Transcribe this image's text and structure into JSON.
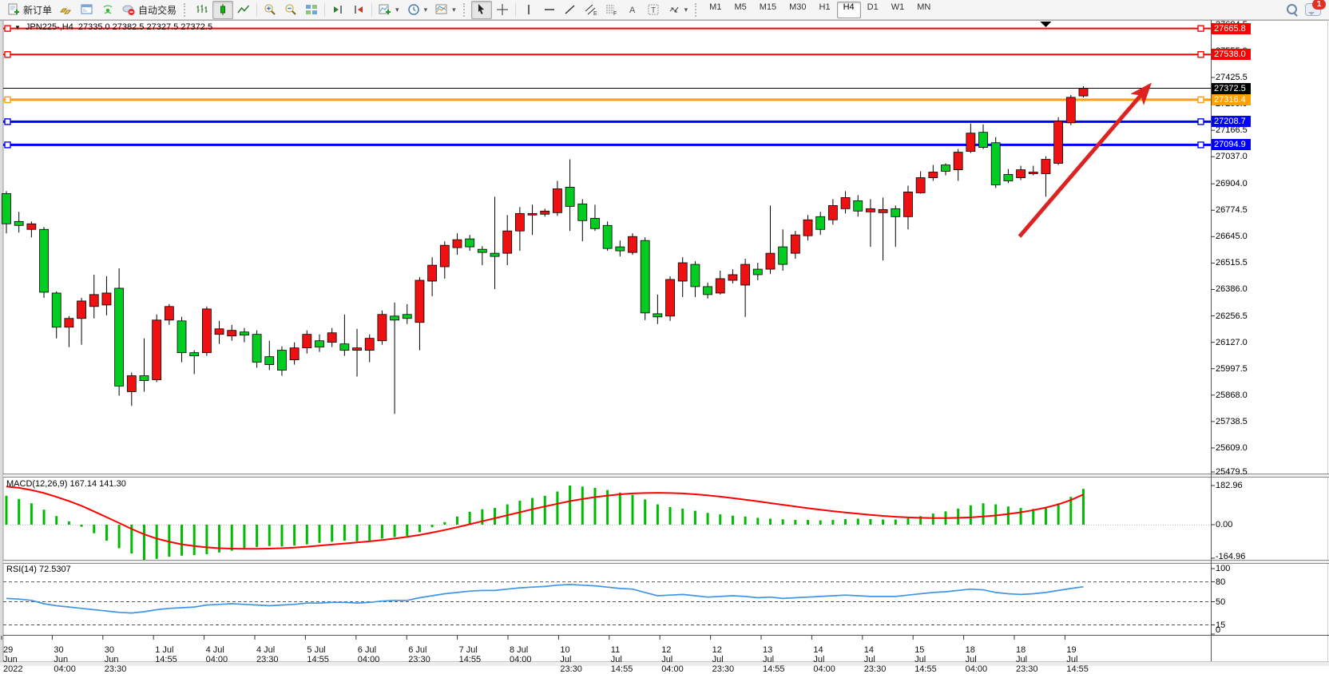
{
  "toolbar": {
    "new_order_label": "新订单",
    "autotrading_label": "自动交易",
    "timeframes": [
      "M1",
      "M5",
      "M15",
      "M30",
      "H1",
      "H4",
      "D1",
      "W1",
      "MN"
    ],
    "active_timeframe": "H4",
    "notification_count": "1",
    "icon_names": [
      "new-order",
      "gold-bars",
      "market-watch",
      "signals",
      "autotrading",
      "bar-chart",
      "candlestick-chart",
      "line-chart",
      "zoom-in",
      "zoom-out",
      "tile-windows",
      "shift-chart-end",
      "chart-shift",
      "new-chart",
      "periods-clock",
      "templates",
      "cursor",
      "crosshair",
      "vertical-line",
      "horizontal-line",
      "trendline",
      "equidistant-channel",
      "fibonacci",
      "text",
      "text-label",
      "arrow-objects",
      "search",
      "notifications"
    ]
  },
  "glyphs": {
    "title_marker": "▼",
    "dropdown": "▾",
    "channel_letter": "E",
    "fibo_letter": "F",
    "text_a": "A",
    "text_label_t": "T"
  },
  "chart": {
    "symbol_period": "JPN225-,H4",
    "ohlc_string": "27335.0 27382.5 27327.5 27372.5"
  },
  "macd_panel": {
    "label": "MACD(12,26,9) 167.14 141.30"
  },
  "rsi_panel": {
    "label": "RSI(14) 72.5307"
  },
  "price_axis_ticks": [
    27684.5,
    27555.0,
    27425.5,
    27296.0,
    27166.5,
    27037.0,
    26904.0,
    26774.5,
    26645.0,
    26515.5,
    26386.0,
    26256.5,
    26127.0,
    25997.5,
    25868.0,
    25738.5,
    25609.0,
    25479.5
  ],
  "macd_ticks": [
    182.96,
    0.0,
    -164.96
  ],
  "rsi_ticks": [
    100,
    80,
    50,
    15,
    0
  ],
  "rsi_levels": [
    80,
    50,
    15
  ],
  "hlines": [
    {
      "price": 27665.8,
      "label": "27665.8",
      "color": "#ff0000",
      "width": 2,
      "handles": true
    },
    {
      "price": 27538.0,
      "label": "27538.0",
      "color": "#ff0000",
      "width": 2,
      "handles": true
    },
    {
      "price": 27372.5,
      "label": "27372.5",
      "color": "#000000",
      "width": 1,
      "handles": false
    },
    {
      "price": 27316.4,
      "label": "27316.4",
      "color": "#ffa000",
      "width": 3,
      "handles": true
    },
    {
      "price": 27208.7,
      "label": "27208.7",
      "color": "#0000ff",
      "width": 3,
      "handles": true
    },
    {
      "price": 27094.9,
      "label": "27094.9",
      "color": "#0000ff",
      "width": 3,
      "handles": true
    }
  ],
  "colors": {
    "bull": "#ee1111",
    "bear": "#00cc22",
    "wick": "#000000",
    "macd_hist": "#00bb00",
    "macd_signal": "#ff0000",
    "rsi_line": "#3f95e8",
    "arrow": "#dd2222"
  },
  "time_axis": [
    "29 Jun 2022",
    "30 Jun 04:00",
    "30 Jun 23:30",
    "1 Jul 14:55",
    "4 Jul 04:00",
    "4 Jul 23:30",
    "5 Jul 14:55",
    "6 Jul 04:00",
    "6 Jul 23:30",
    "7 Jul 14:55",
    "8 Jul 04:00",
    "10 Jul 23:30",
    "11 Jul 14:55",
    "12 Jul 04:00",
    "12 Jul 23:30",
    "13 Jul 14:55",
    "14 Jul 04:00",
    "14 Jul 23:30",
    "15 Jul 14:55",
    "18 Jul 04:00",
    "18 Jul 23:30",
    "19 Jul 14:55"
  ],
  "chart_data": {
    "type": "candlestick",
    "title": "JPN225-,H4",
    "current_bar": {
      "open": 27335.0,
      "high": 27382.5,
      "low": 27327.5,
      "close": 27372.5
    },
    "ylim": [
      25479.5,
      27684.5
    ],
    "x_labels": [
      "29 Jun 2022",
      "30 Jun 04:00",
      "30 Jun 23:30",
      "1 Jul 14:55",
      "4 Jul 04:00",
      "4 Jul 23:30",
      "5 Jul 14:55",
      "6 Jul 04:00",
      "6 Jul 23:30",
      "7 Jul 14:55",
      "8 Jul 04:00",
      "10 Jul 23:30",
      "11 Jul 14:55",
      "12 Jul 04:00",
      "12 Jul 23:30",
      "13 Jul 14:55",
      "14 Jul 04:00",
      "14 Jul 23:30",
      "15 Jul 14:55",
      "18 Jul 04:00",
      "18 Jul 23:30",
      "19 Jul 14:55"
    ],
    "candles_ohlc": [
      [
        26856,
        26868,
        26661,
        26708
      ],
      [
        26719.5,
        26766.5,
        26665,
        26700
      ],
      [
        26680.5,
        26719.5,
        26641.5,
        26708
      ],
      [
        26680.5,
        26692.5,
        26345,
        26372.5
      ],
      [
        26368.5,
        26376.5,
        26146.5,
        26201
      ],
      [
        26201,
        26255.5,
        26103.5,
        26244
      ],
      [
        26244,
        26345,
        26115,
        26329.5
      ],
      [
        26302.5,
        26458.5,
        26244,
        26361
      ],
      [
        26310,
        26450.5,
        26259.5,
        26368.5
      ],
      [
        26392,
        26489.5,
        25865.5,
        25912.5
      ],
      [
        25885,
        25978.5,
        25815,
        25963
      ],
      [
        25963,
        26146.5,
        25885,
        25939.5
      ],
      [
        25943.5,
        26263.5,
        25932,
        26236
      ],
      [
        26236,
        26314,
        26212.5,
        26302.5
      ],
      [
        26232,
        26251.5,
        26029.5,
        26076
      ],
      [
        26076,
        26088,
        25971,
        26060.5
      ],
      [
        26076,
        26302.5,
        26060.5,
        26290.5
      ],
      [
        26166,
        26232,
        26119,
        26193
      ],
      [
        26158,
        26212.5,
        26134.5,
        26185.5
      ],
      [
        26177.5,
        26197,
        26127,
        26162
      ],
      [
        26166,
        26185.5,
        26002,
        26029.5
      ],
      [
        26056.5,
        26134.5,
        25990.5,
        26017.5
      ],
      [
        26088,
        26107.5,
        25963,
        25990.5
      ],
      [
        26041,
        26127,
        26017.5,
        26099.5
      ],
      [
        26099.5,
        26185.5,
        26072,
        26166
      ],
      [
        26134.5,
        26166,
        26080,
        26103.5
      ],
      [
        26127,
        26197,
        26103.5,
        26173.5
      ],
      [
        26119,
        26263.5,
        26060.5,
        26088
      ],
      [
        26088,
        26193,
        25959,
        26099.5
      ],
      [
        26088,
        26166,
        26029.5,
        26146.5
      ],
      [
        26134.5,
        26283,
        26115,
        26263.5
      ],
      [
        26255.5,
        26322,
        25776,
        26236
      ],
      [
        26263.5,
        26314,
        26216.5,
        26244
      ],
      [
        26224.5,
        26446.5,
        26088,
        26431
      ],
      [
        26427,
        26544,
        26353,
        26505
      ],
      [
        26497.5,
        26622,
        26439,
        26602.5
      ],
      [
        26591,
        26661,
        26556,
        26630
      ],
      [
        26634,
        26653.5,
        26575.5,
        26595
      ],
      [
        26583,
        26598.5,
        26505,
        26567.5
      ],
      [
        26563.5,
        26840.5,
        26388,
        26548
      ],
      [
        26563.5,
        26751,
        26505,
        26673
      ],
      [
        26673,
        26790,
        26575.5,
        26758.5
      ],
      [
        26751,
        26801.5,
        26653.5,
        26758.5
      ],
      [
        26755,
        26782,
        26743,
        26770.5
      ],
      [
        26762.5,
        26918.5,
        26747,
        26879.5
      ],
      [
        26887.5,
        27024,
        26673,
        26793.5
      ],
      [
        26805.5,
        26829,
        26622,
        26723.5
      ],
      [
        26735,
        26801.5,
        26673,
        26684.5
      ],
      [
        26700,
        26719.5,
        26575.5,
        26587
      ],
      [
        26595,
        26626,
        26548,
        26575.5
      ],
      [
        26567.5,
        26661,
        26556,
        26645.5
      ],
      [
        26626,
        26641.5,
        26236,
        26271
      ],
      [
        26267,
        26361,
        26216.5,
        26251.5
      ],
      [
        26255.5,
        26450.5,
        26232,
        26435
      ],
      [
        26427,
        26544,
        26349,
        26517
      ],
      [
        26509,
        26524.5,
        26349,
        26400
      ],
      [
        26400,
        26419.5,
        26341.5,
        26361
      ],
      [
        26368.5,
        26478,
        26361,
        26439
      ],
      [
        26431,
        26485.5,
        26415.5,
        26458.5
      ],
      [
        26407.5,
        26536.5,
        26251.5,
        26509
      ],
      [
        26485.5,
        26517,
        26431,
        26458.5
      ],
      [
        26485.5,
        26797.5,
        26462,
        26563.5
      ],
      [
        26595,
        26680.5,
        26478,
        26509
      ],
      [
        26563.5,
        26673,
        26536.5,
        26653.5
      ],
      [
        26649.5,
        26751,
        26626,
        26727.5
      ],
      [
        26743,
        26766.5,
        26653.5,
        26680.5
      ],
      [
        26727.5,
        26829,
        26704,
        26797.5
      ],
      [
        26782,
        26868,
        26758.5,
        26836.5
      ],
      [
        26821,
        26848.5,
        26743,
        26770.5
      ],
      [
        26766.5,
        26829,
        26595,
        26782
      ],
      [
        26762.5,
        26836.5,
        26529,
        26778
      ],
      [
        26782,
        26797.5,
        26595,
        26743
      ],
      [
        26743,
        26895,
        26680.5,
        26864
      ],
      [
        26860,
        26965.5,
        26856,
        26934
      ],
      [
        26934,
        26996.5,
        26918.5,
        26961.5
      ],
      [
        26996.5,
        27004.5,
        26946,
        26965.5
      ],
      [
        26973,
        27074.5,
        26918.5,
        27059
      ],
      [
        27063,
        27199.5,
        27055,
        27152.5
      ],
      [
        27156.5,
        27195.5,
        27074.5,
        27082.5
      ],
      [
        27105.5,
        27133,
        26883.5,
        26899
      ],
      [
        26950,
        26977,
        26907,
        26918.5
      ],
      [
        26934,
        26992.5,
        26922.5,
        26973
      ],
      [
        26953.5,
        26992.5,
        26946,
        26961.5
      ],
      [
        26953.5,
        27039.5,
        26840.5,
        27024
      ],
      [
        27004.5,
        27230.5,
        26996.5,
        27211
      ],
      [
        27203,
        27339.5,
        27191.5,
        27328
      ],
      [
        27335,
        27382.5,
        27327.5,
        27372.5
      ]
    ],
    "indicators": [
      {
        "name": "MACD(12,26,9)",
        "last_values": [
          167.14,
          141.3
        ],
        "scale_max": 182.96,
        "scale_min": -164.96,
        "histogram": [
          135,
          120,
          100,
          70,
          40,
          15,
          -10,
          -40,
          -75,
          -110,
          -135,
          -164.96,
          -160,
          -150,
          -145,
          -142,
          -138,
          -130,
          -122,
          -112,
          -105,
          -100,
          -102,
          -98,
          -92,
          -85,
          -80,
          -75,
          -78,
          -74,
          -65,
          -58,
          -52,
          -35,
          -12,
          12,
          38,
          60,
          72,
          78,
          95,
          112,
          125,
          135,
          155,
          182.96,
          178,
          172,
          162,
          150,
          140,
          118,
          95,
          82,
          75,
          65,
          55,
          48,
          42,
          38,
          32,
          28,
          25,
          22,
          22,
          20,
          22,
          26,
          28,
          26,
          24,
          24,
          30,
          40,
          52,
          62,
          75,
          90,
          100,
          95,
          85,
          78,
          74,
          80,
          100,
          130,
          167.14
        ],
        "signal": [
          178,
          172,
          162,
          148,
          130,
          110,
          88,
          62,
          35,
          8,
          -20,
          -45,
          -65,
          -80,
          -92,
          -100,
          -106,
          -110,
          -112,
          -113,
          -113,
          -112,
          -110,
          -107,
          -103,
          -98,
          -93,
          -88,
          -83,
          -78,
          -72,
          -65,
          -57,
          -48,
          -37,
          -25,
          -12,
          2,
          16,
          30,
          44,
          58,
          72,
          85,
          98,
          110,
          120,
          129,
          136,
          142,
          146,
          148,
          149,
          148,
          146,
          142,
          137,
          131,
          124,
          117,
          109,
          101,
          93,
          85,
          77,
          70,
          63,
          57,
          51,
          46,
          41,
          37,
          34,
          32,
          31,
          31,
          32,
          34,
          38,
          43,
          50,
          58,
          68,
          80,
          95,
          115,
          141.3
        ]
      },
      {
        "name": "RSI(14)",
        "last_value": 72.5307,
        "levels": [
          80,
          50,
          15
        ],
        "range": [
          0,
          100
        ],
        "values": [
          55,
          54,
          52,
          47,
          44,
          42,
          40,
          38,
          36,
          34,
          33,
          35,
          38,
          40,
          41,
          42,
          45,
          46,
          47,
          46,
          45,
          44,
          45,
          46,
          48,
          48,
          49,
          49,
          48,
          49,
          51,
          52,
          52,
          56,
          59,
          62,
          64,
          66,
          67,
          67,
          69,
          71,
          72,
          73,
          75,
          76,
          75,
          74,
          72,
          70,
          69,
          64,
          59,
          60,
          61,
          59,
          57,
          58,
          59,
          58,
          56,
          57,
          55,
          56,
          57,
          58,
          59,
          60,
          59,
          58,
          58,
          58,
          60,
          62,
          64,
          65,
          67,
          69,
          68,
          64,
          62,
          61,
          62,
          64,
          67,
          70,
          72.53
        ]
      }
    ],
    "annotations": [
      {
        "type": "trend-arrow",
        "from": {
          "bar_index": 80.9,
          "price": 26646
        },
        "to": {
          "bar_index": 91.2,
          "price": 27382
        },
        "color": "#dd2222"
      },
      {
        "type": "top-marker-triangle",
        "bar_index": 83
      }
    ]
  }
}
